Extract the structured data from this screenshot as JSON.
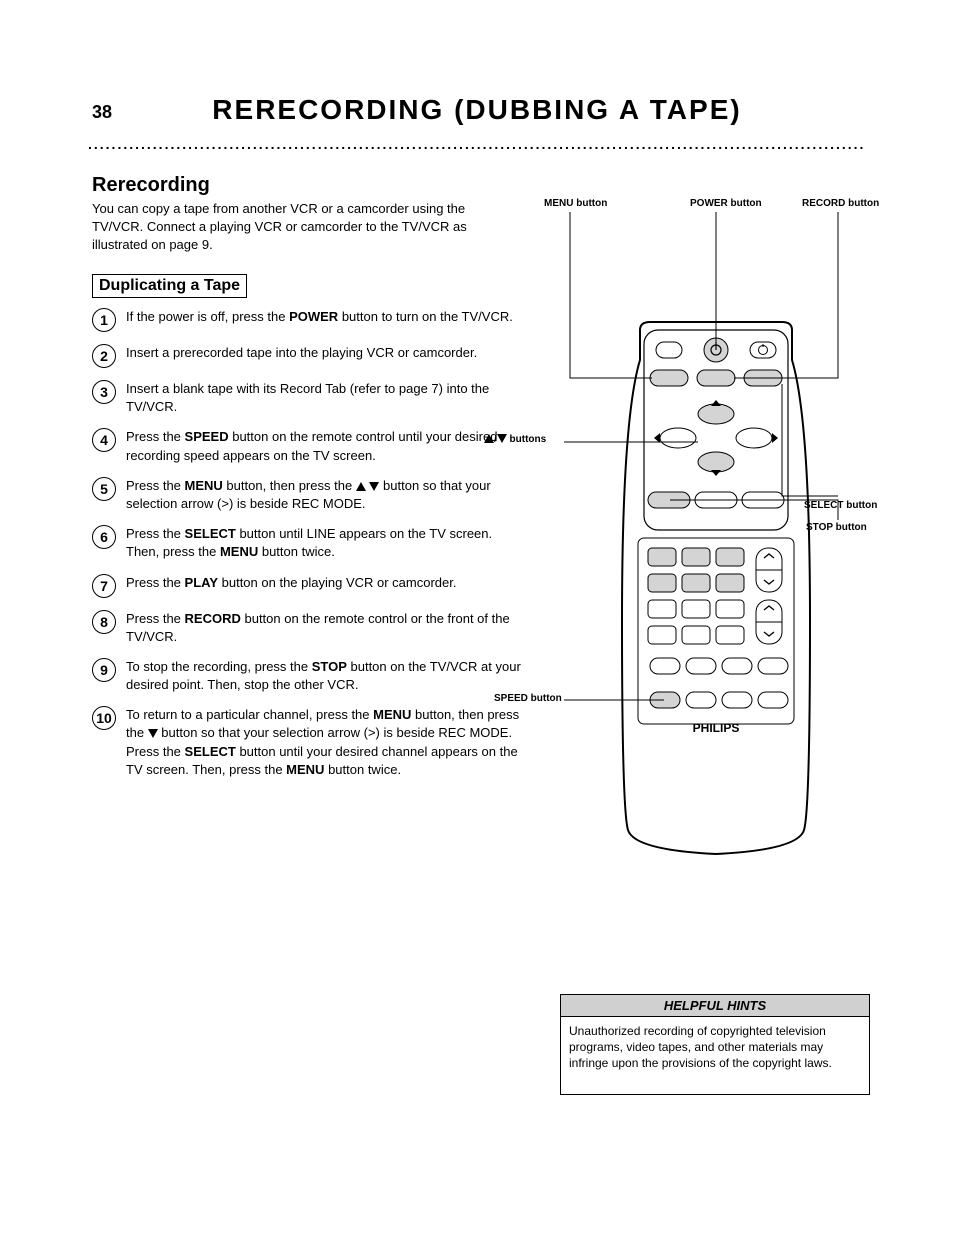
{
  "page_number": "38",
  "page_title": "RERECORDING (DUBBING A TAPE)",
  "section_heading": "Rerecording",
  "intro_para": "You can copy a tape from another VCR or a camcorder using the TV/VCR. Connect a playing VCR or camcorder to the TV/VCR as illustrated on page 9.",
  "sub_section_boxed": "Duplicating a Tape",
  "steps": [
    {
      "num": "1",
      "body_html": "If the power is off, press the <b>POWER</b> button to turn on the TV/VCR."
    },
    {
      "num": "2",
      "body_html": "Insert a prerecorded tape into the playing VCR or camcorder."
    },
    {
      "num": "3",
      "body_html": "Insert a blank tape with its Record Tab (refer to page 7) into the TV/VCR."
    },
    {
      "num": "4",
      "body_html": "Press the <b>SPEED</b> button on the remote control until your desired recording speed appears on the TV screen."
    },
    {
      "num": "5",
      "body_html": "Press the <b>MENU</b> button, then press the <span class=\"tri-up\"></span> <span class=\"tri-down\"></span> button so that your selection arrow (&gt;) is beside REC MODE."
    },
    {
      "num": "6",
      "body_html": "Press the <b>SELECT</b> button until LINE appears on the TV screen. Then, press the <b>MENU</b> button twice."
    },
    {
      "num": "7",
      "body_html": "Press the <b>PLAY</b> button on the playing VCR or camcorder."
    },
    {
      "num": "8",
      "body_html": "Press the <b>RECORD</b> button on the remote control or the front of the TV/VCR."
    },
    {
      "num": "9",
      "body_html": "To stop the recording, press the <b>STOP</b> button on the TV/VCR at your desired point. Then, stop the other VCR."
    },
    {
      "num": "10",
      "body_html": "To return to a particular channel, press the <b>MENU</b> button, then press the <span class=\"tri-down\"></span> button so that your selection arrow (&gt;) is beside REC MODE. Press the <b>SELECT</b> button until your desired channel appears on the TV screen. Then, press the <b>MENU</b> button twice."
    }
  ],
  "callouts": {
    "power": "POWER button",
    "menu": "MENU button",
    "record": "RECORD button",
    "select": "SELECT button",
    "updown": "▲/▼ buttons",
    "stop": "STOP button",
    "speed": "SPEED button"
  },
  "tips_head": "HELPFUL HINTS",
  "tips_body": "Unauthorized recording of copyrighted television programs, video tapes, and other materials may infringe upon the provisions of the copyright laws.",
  "remote_brand": "PHILIPS",
  "colors": {
    "tip_head_bg": "#d0d0d0",
    "btn_highlight": "#d4d4d4"
  }
}
